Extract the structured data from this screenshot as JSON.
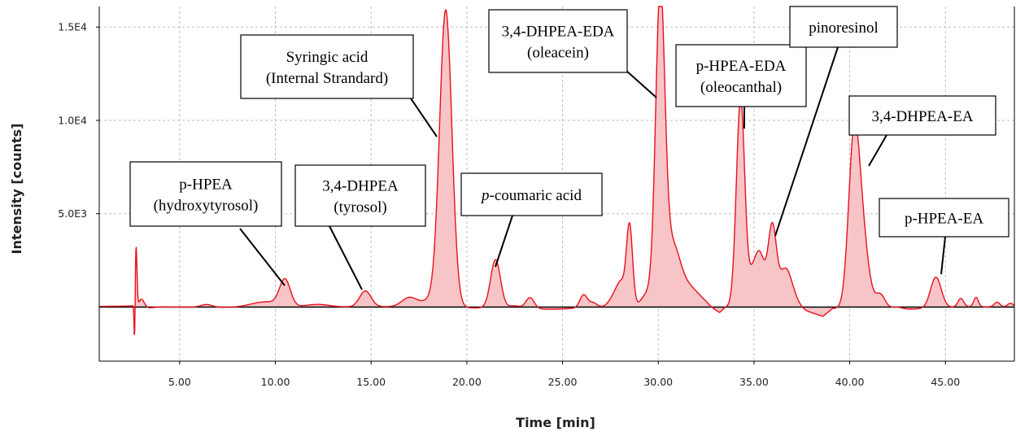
{
  "chart_data": {
    "type": "line",
    "title": "",
    "xlabel": "Time [min]",
    "ylabel": "Intensity [counts]",
    "xlim": [
      0.8,
      48.6
    ],
    "ylim": [
      -2900,
      16100
    ],
    "grid": true,
    "x_ticks": [
      5,
      10,
      15,
      20,
      25,
      30,
      35,
      40,
      45
    ],
    "x_tick_labels": [
      "5.00",
      "10.00",
      "15.00",
      "20.00",
      "25.00",
      "30.00",
      "35.00",
      "40.00",
      "45.00"
    ],
    "y_ticks": [
      5000,
      10000,
      15000
    ],
    "y_tick_labels": [
      "5.0E3",
      "1.0E4",
      "1.5E4"
    ],
    "colors": {
      "trace": "#e8111c",
      "fill": "#f7c4c7",
      "baseline": "#000000",
      "grid": "#bdbdbd"
    },
    "series": [
      {
        "baseline_points": [
          [
            0.8,
            30
          ],
          [
            2.6,
            60
          ],
          [
            2.85,
            -100
          ],
          [
            4,
            10
          ],
          [
            8,
            -30
          ],
          [
            12,
            -10
          ],
          [
            15.5,
            20
          ],
          [
            20,
            -40
          ],
          [
            24.5,
            -120
          ],
          [
            27.5,
            10
          ],
          [
            32.5,
            -120
          ],
          [
            33.2,
            -350
          ],
          [
            33.5,
            -40
          ],
          [
            34.2,
            130
          ],
          [
            36,
            60
          ],
          [
            37.4,
            -100
          ],
          [
            38.6,
            -500
          ],
          [
            39.1,
            -80
          ],
          [
            42.2,
            -160
          ],
          [
            43.5,
            -100
          ],
          [
            46,
            20
          ],
          [
            48.6,
            0
          ]
        ],
        "peaks": [
          [
            2.72,
            3300,
            0.05
          ],
          [
            2.65,
            -2700,
            0.03
          ],
          [
            3.0,
            500,
            0.15
          ],
          [
            6.4,
            150,
            0.3
          ],
          [
            9.5,
            300,
            0.8
          ],
          [
            10.5,
            1400,
            0.28
          ],
          [
            12.2,
            150,
            0.6
          ],
          [
            14.7,
            850,
            0.3
          ],
          [
            17.0,
            500,
            0.4
          ],
          [
            18.2,
            400,
            0.5
          ],
          [
            18.9,
            15800,
            0.32
          ],
          [
            21.5,
            2600,
            0.26
          ],
          [
            22.5,
            150,
            0.3
          ],
          [
            23.3,
            600,
            0.22
          ],
          [
            26.1,
            700,
            0.2
          ],
          [
            26.6,
            250,
            0.2
          ],
          [
            27.8,
            700,
            0.3
          ],
          [
            28.1,
            900,
            0.22
          ],
          [
            28.5,
            4300,
            0.16
          ],
          [
            29.4,
            700,
            0.3
          ],
          [
            30.1,
            16300,
            0.24
          ],
          [
            30.7,
            2800,
            0.4
          ],
          [
            31.5,
            1200,
            0.7
          ],
          [
            34.3,
            11000,
            0.22
          ],
          [
            34.9,
            1200,
            0.2
          ],
          [
            35.3,
            2700,
            0.25
          ],
          [
            35.95,
            4200,
            0.22
          ],
          [
            36.6,
            1800,
            0.3
          ],
          [
            37.0,
            600,
            0.3
          ],
          [
            40.2,
            7600,
            0.28
          ],
          [
            40.6,
            4200,
            0.35
          ],
          [
            41.6,
            800,
            0.25
          ],
          [
            42.4,
            150,
            0.3
          ],
          [
            44.5,
            1650,
            0.28
          ],
          [
            45.8,
            450,
            0.15
          ],
          [
            46.6,
            500,
            0.12
          ],
          [
            47.7,
            250,
            0.15
          ],
          [
            48.4,
            200,
            0.15
          ]
        ]
      }
    ],
    "annotations": [
      {
        "lines": [
          "p-HPEA",
          "(hydroxytyrosol)"
        ]
      },
      {
        "lines": [
          "3,4-DHPEA",
          "(tyrosol)"
        ]
      },
      {
        "lines": [
          "Syringic acid",
          "(Internal Strandard)"
        ]
      },
      {
        "lines": [
          "-coumaric acid"
        ],
        "italic_prefix": "p"
      },
      {
        "lines": [
          "3,4-DHPEA-EDA",
          "(oleacein)"
        ]
      },
      {
        "lines": [
          "p-HPEA-EDA",
          "(oleocanthal)"
        ]
      },
      {
        "lines": [
          "pinoresinol"
        ]
      },
      {
        "lines": [
          "3,4-DHPEA-EA"
        ]
      },
      {
        "lines": [
          "p-HPEA-EA"
        ]
      }
    ]
  }
}
